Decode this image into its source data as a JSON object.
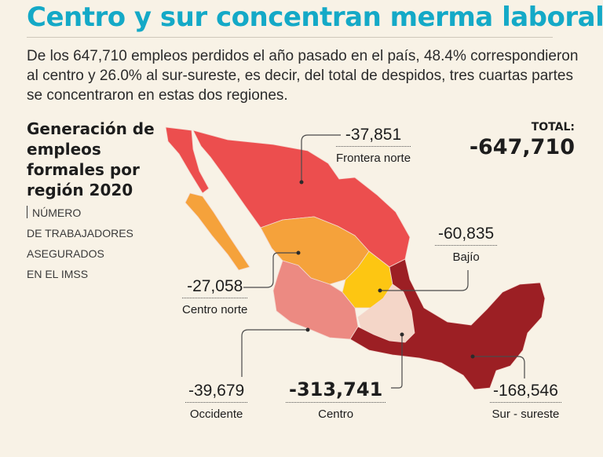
{
  "headline": "Centro y sur concentran merma laboral",
  "lede": "De los 647,710 empleos perdidos el año pasado en el país, 48.4% correspondieron al centro y 26.0% al sur-sureste, es decir, del total de despidos, tres cuartas partes se concentraron en estas dos regiones.",
  "sidebar": {
    "title": "Generación de empleos formales por región 2020",
    "subtitle_lines": [
      "NÚMERO",
      "DE TRABAJADORES",
      "ASEGURADOS",
      "EN EL IMSS"
    ]
  },
  "total": {
    "label": "TOTAL:",
    "value": "-647,710"
  },
  "regions": [
    {
      "name": "Frontera norte",
      "value": "-37,851",
      "color": "#ec4e4e"
    },
    {
      "name": "Bajío",
      "value": "-60,835",
      "color": "#fdc612"
    },
    {
      "name": "Centro norte",
      "value": "-27,058",
      "color": "#f5a23b"
    },
    {
      "name": "Occidente",
      "value": "-39,679",
      "color": "#ec8a82"
    },
    {
      "name": "Centro",
      "value": "-313,741",
      "color": "#f4d6c8"
    },
    {
      "name": "Sur - sureste",
      "value": "-168,546",
      "color": "#9c1f24"
    }
  ]
}
